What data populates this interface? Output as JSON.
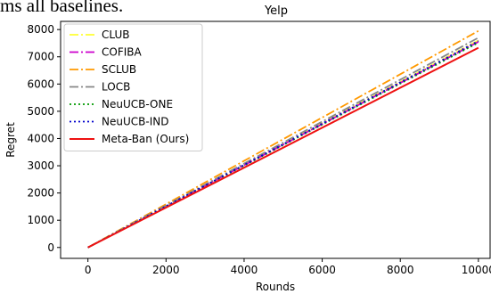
{
  "page_fragment": "ms all baselines.",
  "chart_data": {
    "type": "line",
    "title": "Yelp",
    "xlabel": "Rounds",
    "ylabel": "Regret",
    "xlim": [
      -700,
      10300
    ],
    "ylim": [
      -400,
      8300
    ],
    "xticks": [
      0,
      2000,
      4000,
      6000,
      8000,
      10000
    ],
    "yticks": [
      0,
      1000,
      2000,
      3000,
      4000,
      5000,
      6000,
      7000,
      8000
    ],
    "x": [
      0,
      10000
    ],
    "legend_position": "top-left",
    "series": [
      {
        "name": "CLUB",
        "values": [
          0,
          7600
        ],
        "color": "#ffff33",
        "dash": "dashdot"
      },
      {
        "name": "COFIBA",
        "values": [
          0,
          7550
        ],
        "color": "#cc00cc",
        "dash": "dashdot"
      },
      {
        "name": "SCLUB",
        "values": [
          0,
          7950
        ],
        "color": "#ff9900",
        "dash": "dashdot"
      },
      {
        "name": "LOCB",
        "values": [
          0,
          7700
        ],
        "color": "#888888",
        "dash": "dashdot"
      },
      {
        "name": "NeuUCB-ONE",
        "values": [
          0,
          7520
        ],
        "color": "#009900",
        "dash": "dotted"
      },
      {
        "name": "NeuUCB-IND",
        "values": [
          0,
          7580
        ],
        "color": "#0000cc",
        "dash": "dotted"
      },
      {
        "name": "Meta-Ban (Ours)",
        "values": [
          0,
          7330
        ],
        "color": "#ee1111",
        "dash": "solid"
      }
    ]
  }
}
